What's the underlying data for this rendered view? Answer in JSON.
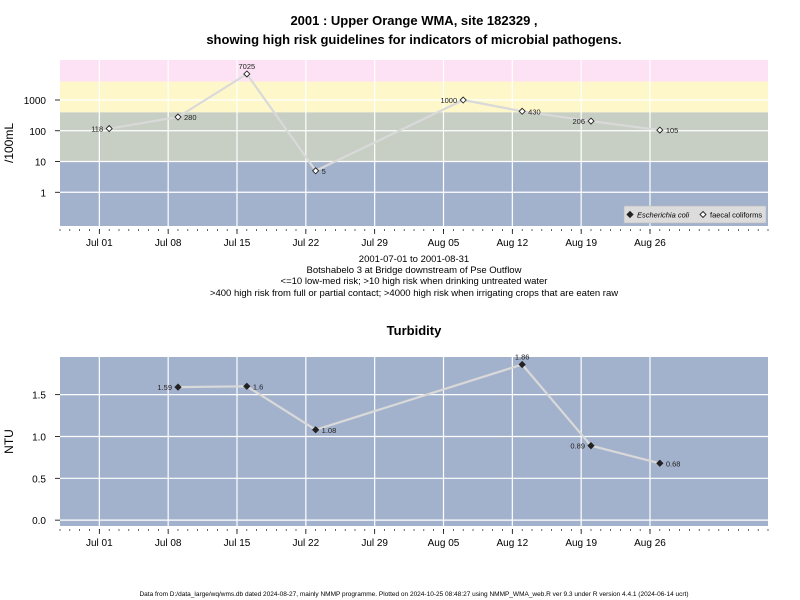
{
  "chart_data": [
    {
      "type": "line",
      "title_line1": "2001 : Upper Orange WMA, site 182329 ,",
      "title_line2": "showing high risk guidelines for indicators of microbial pathogens.",
      "ylabel": "/100mL",
      "yscale": "log",
      "ylim": [
        0.08,
        20000
      ],
      "yticks": [
        {
          "value": 1,
          "label": "1"
        },
        {
          "value": 10,
          "label": "10"
        },
        {
          "value": 100,
          "label": "100"
        },
        {
          "value": 1000,
          "label": "1000"
        }
      ],
      "xlim": [
        "2001-06-27",
        "2001-09-07"
      ],
      "xticks": [
        {
          "date": "2001-07-01",
          "label": "Jul 01"
        },
        {
          "date": "2001-07-08",
          "label": "Jul 08"
        },
        {
          "date": "2001-07-15",
          "label": "Jul 15"
        },
        {
          "date": "2001-07-22",
          "label": "Jul 22"
        },
        {
          "date": "2001-07-29",
          "label": "Jul 29"
        },
        {
          "date": "2001-08-05",
          "label": "Aug 05"
        },
        {
          "date": "2001-08-12",
          "label": "Aug 12"
        },
        {
          "date": "2001-08-19",
          "label": "Aug 19"
        },
        {
          "date": "2001-08-26",
          "label": "Aug 26"
        }
      ],
      "bands": [
        {
          "from": 0.08,
          "to": 10,
          "color": "#a3b2cc"
        },
        {
          "from": 10,
          "to": 400,
          "color": "#c7cec4"
        },
        {
          "from": 400,
          "to": 4000,
          "color": "#fdf7c9"
        },
        {
          "from": 4000,
          "to": 20000,
          "color": "#fde2f5"
        }
      ],
      "series": [
        {
          "name": "faecal coliforms",
          "marker": "open-diamond",
          "points": [
            {
              "date": "2001-07-02",
              "value": 118,
              "label": "118",
              "side": "left"
            },
            {
              "date": "2001-07-09",
              "value": 280,
              "label": "280",
              "side": "right"
            },
            {
              "date": "2001-07-16",
              "value": 7025,
              "label": "7025",
              "side": "top"
            },
            {
              "date": "2001-07-23",
              "value": 5,
              "label": "5",
              "side": "right"
            },
            {
              "date": "2001-08-07",
              "value": 1000,
              "label": "1000",
              "side": "left"
            },
            {
              "date": "2001-08-13",
              "value": 430,
              "label": "430",
              "side": "right"
            },
            {
              "date": "2001-08-20",
              "value": 206,
              "label": "206",
              "side": "left"
            },
            {
              "date": "2001-08-27",
              "value": 105,
              "label": "105",
              "side": "right"
            }
          ]
        }
      ],
      "legend": {
        "position": "bottom-right",
        "entries": [
          {
            "name": "Escherichia coli",
            "marker": "filled-diamond",
            "italic": true
          },
          {
            "name": "faecal coliforms",
            "marker": "open-diamond",
            "italic": false
          }
        ]
      },
      "notes": [
        "2001-07-01 to 2001-08-31",
        "Botshabelo 3 at Bridge downstream of Pse Outflow",
        "<=10 low-med risk; >10 high risk when drinking untreated water",
        ">400 high risk from full or partial contact; >4000 high risk when irrigating crops that are eaten raw"
      ],
      "colors": {
        "line": "#d9d9d9",
        "grid": "#ffffff",
        "marker": "#222222"
      }
    },
    {
      "type": "line",
      "title": "Turbidity",
      "ylabel": "NTU",
      "ylim": [
        -0.07,
        1.95
      ],
      "yticks": [
        {
          "value": 0.0,
          "label": "0.0"
        },
        {
          "value": 0.5,
          "label": "0.5"
        },
        {
          "value": 1.0,
          "label": "1.0"
        },
        {
          "value": 1.5,
          "label": "1.5"
        }
      ],
      "xlim": [
        "2001-06-27",
        "2001-09-07"
      ],
      "xticks": [
        {
          "date": "2001-07-01",
          "label": "Jul 01"
        },
        {
          "date": "2001-07-08",
          "label": "Jul 08"
        },
        {
          "date": "2001-07-15",
          "label": "Jul 15"
        },
        {
          "date": "2001-07-22",
          "label": "Jul 22"
        },
        {
          "date": "2001-07-29",
          "label": "Jul 29"
        },
        {
          "date": "2001-08-05",
          "label": "Aug 05"
        },
        {
          "date": "2001-08-12",
          "label": "Aug 12"
        },
        {
          "date": "2001-08-19",
          "label": "Aug 19"
        },
        {
          "date": "2001-08-26",
          "label": "Aug 26"
        }
      ],
      "series": [
        {
          "marker": "filled-diamond",
          "points": [
            {
              "date": "2001-07-09",
              "value": 1.59,
              "label": "1.59",
              "side": "left"
            },
            {
              "date": "2001-07-16",
              "value": 1.6,
              "label": "1.6",
              "side": "right"
            },
            {
              "date": "2001-07-23",
              "value": 1.08,
              "label": "1.08",
              "side": "right"
            },
            {
              "date": "2001-08-13",
              "value": 1.86,
              "label": "1.86",
              "side": "top"
            },
            {
              "date": "2001-08-20",
              "value": 0.89,
              "label": "0.89",
              "side": "left"
            },
            {
              "date": "2001-08-27",
              "value": 0.68,
              "label": "0.68",
              "side": "right"
            }
          ]
        }
      ],
      "colors": {
        "background": "#a3b2cc",
        "line": "#d9d9d9",
        "grid": "#ffffff",
        "marker": "#222222"
      }
    }
  ],
  "footer": "Data from D:/data_large/wq/wms.db dated 2024-08-27, mainly NMMP programme. Plotted on 2024-10-25 08:48:27 using NMMP_WMA_web.R ver 9.3 under R version 4.4.1 (2024-06-14 ucrt)"
}
